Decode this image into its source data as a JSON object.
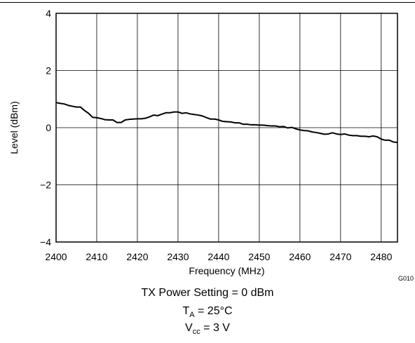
{
  "figure_code": "G010",
  "conditions": {
    "tx_power": "TX Power Setting = 0 dBm",
    "ta_symbol": "T",
    "ta_sub": "A",
    "ta_value": " = 25°C",
    "vcc_symbol": "V",
    "vcc_sub": "cc",
    "vcc_value": " = 3 V"
  },
  "chart_data": {
    "type": "line",
    "title": "",
    "xlabel": "Frequency (MHz)",
    "ylabel": "Level (dBm)",
    "xlim": [
      2400,
      2484
    ],
    "ylim": [
      -4,
      4
    ],
    "x_ticks": [
      2400,
      2410,
      2420,
      2430,
      2440,
      2450,
      2460,
      2470,
      2480
    ],
    "y_ticks": [
      4,
      2,
      0,
      -2,
      -4
    ],
    "y_tick_labels": [
      "4",
      "2",
      "0",
      "−2",
      "−4"
    ],
    "grid": true,
    "legend": "none",
    "color": "#000000",
    "series": [
      {
        "x": [
          2400,
          2401,
          2402,
          2403,
          2404,
          2405,
          2406,
          2407,
          2408,
          2409,
          2410,
          2411,
          2412,
          2413,
          2414,
          2415,
          2416,
          2417,
          2418,
          2419,
          2420,
          2421,
          2422,
          2423,
          2424,
          2425,
          2426,
          2427,
          2428,
          2429,
          2430,
          2431,
          2432,
          2433,
          2434,
          2435,
          2436,
          2437,
          2438,
          2439,
          2440,
          2441,
          2442,
          2443,
          2444,
          2445,
          2446,
          2447,
          2448,
          2449,
          2450,
          2451,
          2452,
          2453,
          2454,
          2455,
          2456,
          2457,
          2458,
          2459,
          2460,
          2461,
          2462,
          2463,
          2464,
          2465,
          2466,
          2467,
          2468,
          2469,
          2470,
          2471,
          2472,
          2473,
          2474,
          2475,
          2476,
          2477,
          2478,
          2479,
          2480,
          2481,
          2482,
          2483,
          2484
        ],
        "y": [
          0.88,
          0.85,
          0.83,
          0.78,
          0.75,
          0.72,
          0.72,
          0.6,
          0.5,
          0.36,
          0.35,
          0.32,
          0.28,
          0.27,
          0.27,
          0.18,
          0.18,
          0.27,
          0.29,
          0.3,
          0.31,
          0.31,
          0.33,
          0.38,
          0.44,
          0.42,
          0.47,
          0.52,
          0.52,
          0.55,
          0.55,
          0.5,
          0.52,
          0.48,
          0.46,
          0.44,
          0.41,
          0.35,
          0.3,
          0.3,
          0.27,
          0.22,
          0.21,
          0.2,
          0.17,
          0.17,
          0.12,
          0.12,
          0.1,
          0.1,
          0.09,
          0.09,
          0.07,
          0.06,
          0.06,
          0.03,
          0.04,
          -0.01,
          0.01,
          -0.04,
          -0.08,
          -0.1,
          -0.11,
          -0.15,
          -0.17,
          -0.2,
          -0.23,
          -0.22,
          -0.18,
          -0.22,
          -0.24,
          -0.22,
          -0.26,
          -0.28,
          -0.28,
          -0.3,
          -0.3,
          -0.32,
          -0.29,
          -0.32,
          -0.4,
          -0.44,
          -0.44,
          -0.5,
          -0.52
        ]
      }
    ]
  }
}
